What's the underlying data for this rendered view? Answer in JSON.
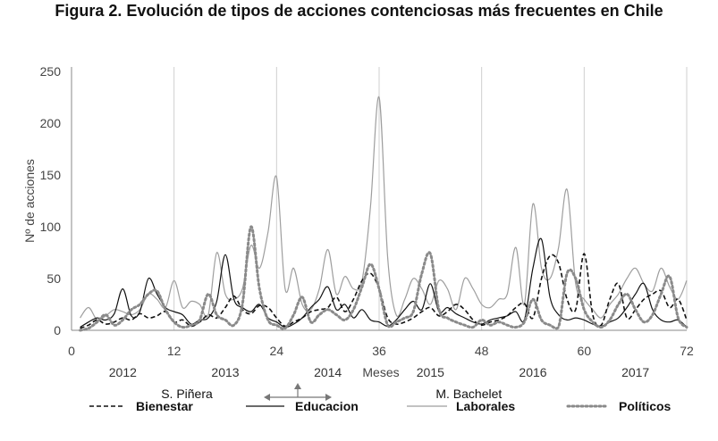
{
  "chart_data": {
    "type": "line",
    "title": "Figura 2. Evolución de tipos de acciones contenciosas más frecuentes en Chile",
    "xlabel": "Meses",
    "ylabel": "Nº de acciones",
    "xlim": [
      0,
      72
    ],
    "ylim": [
      0,
      250
    ],
    "x_ticks": [
      0,
      12,
      24,
      36,
      48,
      60,
      72
    ],
    "y_ticks": [
      0,
      50,
      100,
      150,
      200,
      250
    ],
    "year_separators": [
      12,
      24,
      36,
      48,
      60,
      72
    ],
    "year_labels": [
      {
        "label": "2012",
        "x": 6
      },
      {
        "label": "2013",
        "x": 18
      },
      {
        "label": "2014",
        "x": 30
      },
      {
        "label": "2015",
        "x": 42
      },
      {
        "label": "2016",
        "x": 54
      },
      {
        "label": "2017",
        "x": 66
      }
    ],
    "periods": [
      {
        "label": "S. Piñera",
        "x": 13.5
      },
      {
        "label": "M. Bachelet",
        "x": 46.5
      }
    ],
    "grid": false,
    "legend": "bottom",
    "series": [
      {
        "name": "Bienestar",
        "style": "dashed",
        "color": "#111111",
        "x": [
          1,
          2,
          3,
          4,
          5,
          6,
          7,
          8,
          9,
          10,
          11,
          12,
          13,
          14,
          15,
          16,
          17,
          18,
          19,
          20,
          21,
          22,
          23,
          24,
          25,
          26,
          27,
          28,
          29,
          30,
          31,
          32,
          33,
          34,
          35,
          36,
          37,
          38,
          39,
          40,
          41,
          42,
          43,
          44,
          45,
          46,
          47,
          48,
          49,
          50,
          51,
          52,
          53,
          54,
          55,
          56,
          57,
          58,
          59,
          60,
          61,
          62,
          63,
          64,
          65,
          66,
          67,
          68,
          69,
          70,
          71,
          72
        ],
        "values": [
          2,
          5,
          10,
          6,
          8,
          12,
          10,
          16,
          12,
          14,
          18,
          8,
          10,
          4,
          8,
          15,
          12,
          22,
          33,
          20,
          16,
          24,
          22,
          12,
          4,
          8,
          12,
          18,
          20,
          22,
          32,
          18,
          30,
          48,
          55,
          40,
          12,
          6,
          8,
          12,
          18,
          22,
          14,
          18,
          25,
          20,
          10,
          5,
          8,
          10,
          14,
          22,
          26,
          12,
          50,
          72,
          65,
          30,
          20,
          74,
          15,
          5,
          30,
          45,
          12,
          20,
          30,
          35,
          38,
          22,
          30,
          10
        ]
      },
      {
        "name": "Educacion",
        "style": "solid",
        "color": "#111111",
        "x": [
          1,
          2,
          3,
          4,
          5,
          6,
          7,
          8,
          9,
          10,
          11,
          12,
          13,
          14,
          15,
          16,
          17,
          18,
          19,
          20,
          21,
          22,
          23,
          24,
          25,
          26,
          27,
          28,
          29,
          30,
          31,
          32,
          33,
          34,
          35,
          36,
          37,
          38,
          39,
          40,
          41,
          42,
          43,
          44,
          45,
          46,
          47,
          48,
          49,
          50,
          51,
          52,
          53,
          54,
          55,
          56,
          57,
          58,
          59,
          60,
          61,
          62,
          63,
          64,
          65,
          66,
          67,
          68,
          69,
          70,
          71,
          72
        ],
        "values": [
          3,
          8,
          12,
          10,
          16,
          40,
          14,
          18,
          50,
          35,
          22,
          18,
          15,
          6,
          10,
          12,
          28,
          73,
          30,
          22,
          18,
          25,
          12,
          8,
          3,
          6,
          12,
          22,
          30,
          42,
          20,
          25,
          12,
          20,
          10,
          8,
          4,
          10,
          20,
          28,
          20,
          45,
          18,
          22,
          16,
          12,
          8,
          6,
          10,
          12,
          14,
          18,
          10,
          60,
          88,
          32,
          15,
          10,
          12,
          10,
          6,
          4,
          8,
          12,
          22,
          35,
          45,
          20,
          10,
          8,
          10,
          3
        ]
      },
      {
        "name": "Laborales",
        "style": "solid-light",
        "color": "#9e9e9e",
        "x": [
          1,
          2,
          3,
          4,
          5,
          6,
          7,
          8,
          9,
          10,
          11,
          12,
          13,
          14,
          15,
          16,
          17,
          18,
          19,
          20,
          21,
          22,
          23,
          24,
          25,
          26,
          27,
          28,
          29,
          30,
          31,
          32,
          33,
          34,
          35,
          36,
          37,
          38,
          39,
          40,
          41,
          42,
          43,
          44,
          45,
          46,
          47,
          48,
          49,
          50,
          51,
          52,
          53,
          54,
          55,
          56,
          57,
          58,
          59,
          60,
          61,
          62,
          63,
          64,
          65,
          66,
          67,
          68,
          69,
          70,
          71,
          72
        ],
        "values": [
          12,
          22,
          10,
          14,
          20,
          18,
          15,
          20,
          35,
          30,
          22,
          48,
          22,
          28,
          25,
          15,
          75,
          35,
          30,
          40,
          82,
          60,
          95,
          148,
          40,
          60,
          25,
          20,
          40,
          78,
          35,
          52,
          40,
          48,
          120,
          225,
          70,
          15,
          30,
          50,
          40,
          25,
          48,
          40,
          20,
          50,
          40,
          25,
          22,
          30,
          35,
          80,
          25,
          122,
          60,
          50,
          80,
          136,
          45,
          30,
          20,
          12,
          25,
          35,
          50,
          60,
          45,
          38,
          60,
          42,
          30,
          48
        ]
      },
      {
        "name": "Políticos",
        "style": "dotted",
        "color": "#8a8a8a",
        "x": [
          1,
          2,
          3,
          4,
          5,
          6,
          7,
          8,
          9,
          10,
          11,
          12,
          13,
          14,
          15,
          16,
          17,
          18,
          19,
          20,
          21,
          22,
          23,
          24,
          25,
          26,
          27,
          28,
          29,
          30,
          31,
          32,
          33,
          34,
          35,
          36,
          37,
          38,
          39,
          40,
          41,
          42,
          43,
          44,
          45,
          46,
          47,
          48,
          49,
          50,
          51,
          52,
          53,
          54,
          55,
          56,
          57,
          58,
          59,
          60,
          61,
          62,
          63,
          64,
          65,
          66,
          67,
          68,
          69,
          70,
          71,
          72
        ],
        "values": [
          0,
          2,
          8,
          15,
          5,
          10,
          20,
          25,
          35,
          38,
          20,
          8,
          3,
          5,
          10,
          35,
          15,
          10,
          5,
          25,
          100,
          40,
          10,
          5,
          2,
          15,
          32,
          8,
          15,
          20,
          15,
          10,
          20,
          42,
          64,
          40,
          5,
          8,
          12,
          18,
          55,
          74,
          20,
          12,
          8,
          5,
          3,
          10,
          5,
          8,
          5,
          3,
          8,
          30,
          10,
          5,
          3,
          55,
          50,
          20,
          8,
          3,
          10,
          25,
          35,
          20,
          8,
          15,
          35,
          52,
          12,
          3
        ]
      }
    ],
    "annotation": "arrow-cross"
  }
}
